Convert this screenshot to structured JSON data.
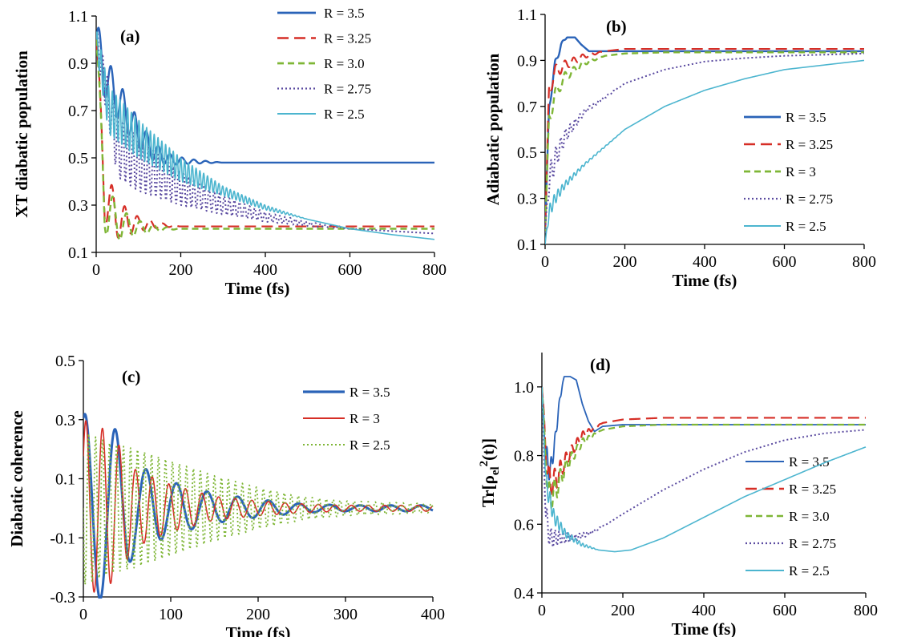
{
  "colors": {
    "blue": "#2a63b8",
    "red": "#d62e26",
    "green": "#7fb636",
    "purple": "#5a4aa0",
    "cyan": "#4cb5cf"
  },
  "chart_data": [
    {
      "type": "line",
      "panel_label": "(a)",
      "xlabel": "Time (fs)",
      "ylabel": "XT diabatic population",
      "xlim": [
        0,
        800
      ],
      "ylim": [
        0.1,
        1.1
      ],
      "xticks": [
        0,
        200,
        400,
        600,
        800
      ],
      "yticks": [
        0.1,
        0.3,
        0.5,
        0.7,
        0.9,
        1.1
      ],
      "x_tick_labels": [
        "0",
        "200",
        "400",
        "600",
        "800"
      ],
      "y_tick_labels": [
        "0.1",
        "0.3",
        "0.5",
        "0.7",
        "0.9",
        "1.1"
      ],
      "legend_position": "top-right",
      "series": [
        {
          "name": "R = 3.5",
          "color": "blue",
          "dash": "solid",
          "width": 2.4,
          "x": [
            0,
            20,
            60,
            100,
            140,
            180,
            220,
            260,
            300,
            800
          ],
          "y": [
            1.0,
            0.85,
            0.72,
            0.6,
            0.52,
            0.49,
            0.485,
            0.482,
            0.48,
            0.48
          ],
          "osc_period": 28,
          "osc_amp": [
            0.1,
            0.09,
            0.08,
            0.06,
            0.04,
            0.02,
            0.01,
            0.005,
            0,
            0
          ]
        },
        {
          "name": "R = 3.25",
          "color": "red",
          "dash": "long-dash",
          "width": 2.2,
          "x": [
            0,
            20,
            50,
            100,
            150,
            200,
            300,
            800
          ],
          "y": [
            1.0,
            0.35,
            0.24,
            0.22,
            0.215,
            0.21,
            0.21,
            0.21
          ],
          "osc_period": 30,
          "osc_amp": [
            0.05,
            0.12,
            0.08,
            0.03,
            0.01,
            0,
            0,
            0
          ]
        },
        {
          "name": "R = 3.0",
          "color": "green",
          "dash": "dash",
          "width": 2.4,
          "x": [
            0,
            20,
            50,
            100,
            150,
            200,
            300,
            800
          ],
          "y": [
            1.0,
            0.3,
            0.22,
            0.205,
            0.2,
            0.2,
            0.2,
            0.2
          ],
          "osc_period": 32,
          "osc_amp": [
            0.05,
            0.12,
            0.07,
            0.03,
            0.01,
            0,
            0,
            0
          ]
        },
        {
          "name": "R = 2.75",
          "color": "purple",
          "dash": "dot",
          "width": 2.0,
          "x": [
            0,
            50,
            100,
            200,
            300,
            400,
            500,
            600,
            800
          ],
          "y": [
            1.0,
            0.55,
            0.47,
            0.37,
            0.3,
            0.25,
            0.22,
            0.2,
            0.18
          ],
          "osc_period": 12,
          "osc_amp": [
            0.05,
            0.13,
            0.11,
            0.07,
            0.04,
            0.02,
            0.01,
            0,
            0
          ]
        },
        {
          "name": "R = 2.5",
          "color": "cyan",
          "dash": "solid",
          "width": 1.6,
          "x": [
            0,
            30,
            100,
            200,
            300,
            400,
            500,
            600,
            700,
            800
          ],
          "y": [
            1.0,
            0.7,
            0.58,
            0.45,
            0.36,
            0.29,
            0.24,
            0.2,
            0.175,
            0.155
          ],
          "osc_period": 9,
          "osc_amp": [
            0.05,
            0.1,
            0.08,
            0.05,
            0.02,
            0.01,
            0,
            0,
            0,
            0
          ]
        }
      ]
    },
    {
      "type": "line",
      "panel_label": "(b)",
      "xlabel": "Time (fs)",
      "ylabel": "Adiabatic population",
      "xlim": [
        0,
        800
      ],
      "ylim": [
        0.1,
        1.1
      ],
      "xticks": [
        0,
        200,
        400,
        600,
        800
      ],
      "yticks": [
        0.1,
        0.3,
        0.5,
        0.7,
        0.9,
        1.1
      ],
      "x_tick_labels": [
        "0",
        "200",
        "400",
        "600",
        "800"
      ],
      "y_tick_labels": [
        "0.1",
        "0.3",
        "0.5",
        "0.7",
        "0.9",
        "1.1"
      ],
      "legend_position": "center-right",
      "series": [
        {
          "name": "R = 3.5",
          "color": "blue",
          "dash": "solid",
          "width": 2.4,
          "x": [
            0,
            10,
            25,
            40,
            55,
            75,
            90,
            110,
            150,
            200,
            800
          ],
          "y": [
            0.15,
            0.7,
            0.88,
            0.97,
            1.0,
            1.0,
            0.97,
            0.94,
            0.94,
            0.94,
            0.94
          ],
          "osc_period": 20,
          "osc_amp": [
            0,
            0.02,
            0.02,
            0.01,
            0,
            0,
            0,
            0,
            0,
            0,
            0
          ]
        },
        {
          "name": "R = 3.25",
          "color": "red",
          "dash": "long-dash",
          "width": 2.2,
          "x": [
            0,
            10,
            25,
            50,
            100,
            150,
            200,
            300,
            800
          ],
          "y": [
            0.15,
            0.78,
            0.85,
            0.88,
            0.92,
            0.94,
            0.95,
            0.95,
            0.95
          ],
          "osc_period": 22,
          "osc_amp": [
            0,
            0.04,
            0.03,
            0.02,
            0.01,
            0,
            0,
            0,
            0
          ]
        },
        {
          "name": "R = 3",
          "color": "green",
          "dash": "dash",
          "width": 2.4,
          "x": [
            0,
            10,
            25,
            50,
            100,
            150,
            200,
            300,
            800
          ],
          "y": [
            0.15,
            0.65,
            0.75,
            0.83,
            0.89,
            0.92,
            0.93,
            0.935,
            0.935
          ],
          "osc_period": 22,
          "osc_amp": [
            0,
            0.04,
            0.03,
            0.02,
            0.01,
            0,
            0,
            0,
            0
          ]
        },
        {
          "name": "R = 2.75",
          "color": "purple",
          "dash": "dot",
          "width": 2.0,
          "x": [
            0,
            10,
            25,
            50,
            100,
            200,
            300,
            400,
            500,
            600,
            800
          ],
          "y": [
            0.15,
            0.38,
            0.47,
            0.57,
            0.68,
            0.8,
            0.86,
            0.895,
            0.91,
            0.92,
            0.93
          ],
          "osc_period": 12,
          "osc_amp": [
            0,
            0.06,
            0.05,
            0.03,
            0.01,
            0,
            0,
            0,
            0,
            0,
            0
          ]
        },
        {
          "name": "R = 2.5",
          "color": "cyan",
          "dash": "solid",
          "width": 1.6,
          "x": [
            0,
            10,
            25,
            50,
            100,
            200,
            300,
            400,
            500,
            600,
            700,
            800
          ],
          "y": [
            0.1,
            0.24,
            0.3,
            0.36,
            0.45,
            0.6,
            0.7,
            0.77,
            0.82,
            0.86,
            0.88,
            0.9
          ],
          "osc_period": 10,
          "osc_amp": [
            0,
            0.03,
            0.025,
            0.015,
            0.005,
            0,
            0,
            0,
            0,
            0,
            0,
            0
          ]
        }
      ]
    },
    {
      "type": "line",
      "panel_label": "(c)",
      "xlabel": "Time (fs)",
      "ylabel": "Diabatic coherence",
      "xlim": [
        0,
        400
      ],
      "ylim": [
        -0.3,
        0.5
      ],
      "xticks": [
        0,
        100,
        200,
        300,
        400
      ],
      "yticks": [
        -0.3,
        -0.1,
        0.1,
        0.3,
        0.5
      ],
      "x_tick_labels": [
        "0",
        "100",
        "200",
        "300",
        "400"
      ],
      "y_tick_labels": [
        "-0.3",
        "-0.1",
        "0.1",
        "0.3",
        "0.5"
      ],
      "legend_position": "top-right",
      "series": [
        {
          "name": "R = 3.5",
          "color": "blue",
          "dash": "solid",
          "width": 3.0,
          "x": [
            0,
            30,
            60,
            100,
            150,
            200,
            250,
            300,
            400
          ],
          "y": [
            0,
            0,
            0,
            0,
            0,
            0,
            0,
            0,
            0
          ],
          "osc_period": 35,
          "osc_amp": [
            0.32,
            0.3,
            0.15,
            0.09,
            0.05,
            0.03,
            0.015,
            0.01,
            0.01
          ],
          "osc_phase": 0.2
        },
        {
          "name": "R = 3",
          "color": "red",
          "dash": "solid",
          "width": 1.6,
          "x": [
            0,
            30,
            60,
            100,
            150,
            200,
            250,
            300,
            400
          ],
          "y": [
            0,
            0,
            0,
            0,
            0,
            0,
            0,
            0,
            0
          ],
          "osc_period": 19,
          "osc_amp": [
            0.3,
            0.26,
            0.13,
            0.08,
            0.04,
            0.025,
            0.015,
            0.01,
            0.01
          ],
          "osc_phase": 0.1
        },
        {
          "name": "R = 2.5",
          "color": "green",
          "dash": "dot",
          "width": 1.8,
          "x": [
            0,
            30,
            60,
            100,
            150,
            200,
            250,
            300,
            400
          ],
          "y": [
            0,
            0,
            0,
            0,
            0,
            0,
            0,
            0,
            0
          ],
          "osc_period": 8,
          "osc_amp": [
            0.26,
            0.22,
            0.2,
            0.16,
            0.11,
            0.07,
            0.04,
            0.025,
            0.015
          ],
          "osc_phase": 0.5
        }
      ]
    },
    {
      "type": "line",
      "panel_label": "(d)",
      "xlabel": "Time (fs)",
      "ylabel": "Tr[ρel2(t)]",
      "xlim": [
        0,
        800
      ],
      "ylim": [
        0.4,
        1.1
      ],
      "xticks": [
        0,
        200,
        400,
        600,
        800
      ],
      "yticks": [
        0.4,
        0.6,
        0.8,
        1.0
      ],
      "x_tick_labels": [
        "0",
        "200",
        "400",
        "600",
        "800"
      ],
      "y_tick_labels": [
        "0.4",
        "0.6",
        "0.8",
        "1.0"
      ],
      "legend_position": "bottom-right",
      "series": [
        {
          "name": "R = 3.5",
          "color": "blue",
          "dash": "solid",
          "width": 1.8,
          "x": [
            0,
            10,
            20,
            30,
            45,
            55,
            70,
            85,
            100,
            115,
            130,
            150,
            200,
            800
          ],
          "y": [
            1.0,
            0.8,
            0.75,
            0.82,
            0.97,
            1.03,
            1.03,
            1.02,
            0.95,
            0.9,
            0.87,
            0.885,
            0.89,
            0.89
          ],
          "osc_period": 10,
          "osc_amp": [
            0,
            0.04,
            0.03,
            0.02,
            0.01,
            0,
            0,
            0,
            0,
            0,
            0,
            0,
            0,
            0
          ]
        },
        {
          "name": "R = 3.25",
          "color": "red",
          "dash": "long-dash",
          "width": 2.2,
          "x": [
            0,
            15,
            30,
            60,
            100,
            150,
            200,
            300,
            800
          ],
          "y": [
            1.0,
            0.73,
            0.72,
            0.79,
            0.86,
            0.895,
            0.905,
            0.91,
            0.91
          ],
          "osc_period": 14,
          "osc_amp": [
            0,
            0.05,
            0.04,
            0.02,
            0.01,
            0,
            0,
            0,
            0
          ]
        },
        {
          "name": "R = 3.0",
          "color": "green",
          "dash": "dash",
          "width": 2.2,
          "x": [
            0,
            15,
            30,
            60,
            100,
            150,
            200,
            300,
            800
          ],
          "y": [
            1.0,
            0.68,
            0.69,
            0.77,
            0.84,
            0.875,
            0.885,
            0.89,
            0.89
          ],
          "osc_period": 14,
          "osc_amp": [
            0,
            0.05,
            0.04,
            0.02,
            0.01,
            0,
            0,
            0,
            0
          ]
        },
        {
          "name": "R = 2.75",
          "color": "purple",
          "dash": "dot",
          "width": 2.0,
          "x": [
            0,
            10,
            20,
            40,
            80,
            120,
            160,
            200,
            300,
            400,
            500,
            600,
            700,
            800
          ],
          "y": [
            1.0,
            0.62,
            0.56,
            0.56,
            0.56,
            0.575,
            0.6,
            0.63,
            0.7,
            0.76,
            0.81,
            0.845,
            0.865,
            0.875
          ],
          "osc_period": 10,
          "osc_amp": [
            0,
            0.04,
            0.03,
            0.02,
            0.01,
            0.005,
            0,
            0,
            0,
            0,
            0,
            0,
            0,
            0
          ]
        },
        {
          "name": "R = 2.5",
          "color": "cyan",
          "dash": "solid",
          "width": 1.6,
          "x": [
            0,
            10,
            30,
            60,
            100,
            140,
            180,
            220,
            300,
            400,
            500,
            600,
            700,
            800
          ],
          "y": [
            1.0,
            0.72,
            0.62,
            0.57,
            0.54,
            0.525,
            0.52,
            0.525,
            0.56,
            0.62,
            0.68,
            0.73,
            0.78,
            0.825
          ],
          "osc_period": 9,
          "osc_amp": [
            0,
            0.03,
            0.02,
            0.01,
            0.005,
            0,
            0,
            0,
            0,
            0,
            0,
            0,
            0,
            0
          ]
        }
      ]
    }
  ]
}
